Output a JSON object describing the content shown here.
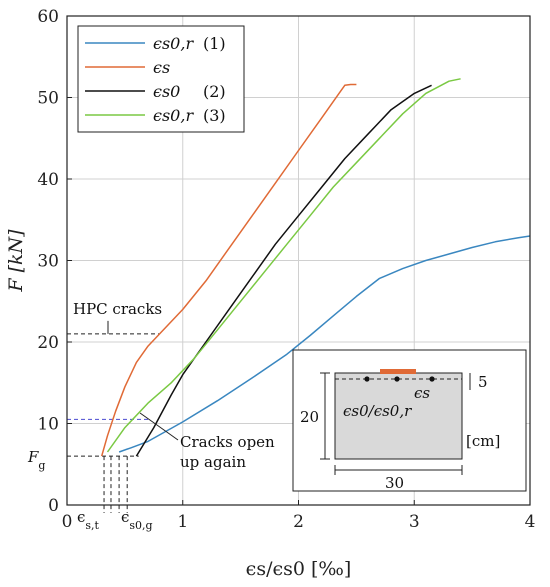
{
  "chart_data": {
    "type": "line",
    "xlabel": "ϵs/ϵs0 [‰]",
    "ylabel": "F [kN]",
    "xlim": [
      0,
      4
    ],
    "ylim": [
      0,
      60
    ],
    "xticks": [
      0,
      1,
      2,
      3,
      4
    ],
    "yticks": [
      0,
      10,
      20,
      30,
      40,
      50,
      60
    ],
    "grid": true,
    "legend_position": "top-left",
    "series": [
      {
        "name": "ϵs0,r",
        "legend_note": "(1)",
        "color": "#3a87c0",
        "x": [
          0.45,
          0.55,
          0.7,
          1.0,
          1.3,
          1.6,
          1.9,
          2.1,
          2.3,
          2.5,
          2.7,
          2.9,
          3.1,
          3.3,
          3.5,
          3.7,
          3.9,
          4.0
        ],
        "y": [
          6.5,
          7.0,
          7.8,
          10.2,
          12.8,
          15.6,
          18.5,
          20.8,
          23.2,
          25.6,
          27.8,
          29.0,
          30.0,
          30.8,
          31.6,
          32.3,
          32.8,
          33.0
        ]
      },
      {
        "name": "ϵs",
        "legend_note": "",
        "color": "#e06a36",
        "x": [
          0.3,
          0.35,
          0.42,
          0.5,
          0.6,
          0.7,
          0.8,
          1.0,
          1.2,
          1.4,
          1.6,
          1.8,
          2.0,
          2.2,
          2.35,
          2.4,
          2.45,
          2.5
        ],
        "y": [
          6.0,
          8.5,
          11.5,
          14.5,
          17.5,
          19.5,
          21.0,
          24.0,
          27.5,
          31.5,
          35.5,
          39.5,
          43.5,
          47.5,
          50.5,
          51.5,
          51.6,
          51.6
        ]
      },
      {
        "name": "ϵs0",
        "legend_note": "(2)",
        "color": "#111111",
        "x": [
          0.6,
          0.75,
          0.9,
          1.0,
          1.2,
          1.4,
          1.6,
          1.8,
          2.0,
          2.2,
          2.4,
          2.6,
          2.8,
          3.0,
          3.15
        ],
        "y": [
          6.0,
          9.5,
          13.5,
          16.0,
          20.0,
          24.0,
          28.0,
          32.0,
          35.5,
          39.0,
          42.5,
          45.5,
          48.5,
          50.5,
          51.5
        ]
      },
      {
        "name": "ϵs0,r",
        "legend_note": "(3)",
        "color": "#7ac943",
        "x": [
          0.35,
          0.5,
          0.7,
          0.9,
          1.1,
          1.3,
          1.5,
          1.7,
          1.9,
          2.1,
          2.3,
          2.5,
          2.7,
          2.9,
          3.1,
          3.3,
          3.4
        ],
        "y": [
          6.5,
          9.5,
          12.5,
          15.0,
          18.0,
          21.5,
          25.0,
          28.5,
          32.0,
          35.5,
          39.0,
          42.0,
          45.0,
          48.0,
          50.5,
          52.0,
          52.3
        ]
      }
    ],
    "annotations": {
      "hpc_cracks": {
        "text": "HPC cracks",
        "y": 21
      },
      "cracks_open_line1": "Cracks open",
      "cracks_open_line2": "up again",
      "fg_label": "F",
      "fg_sub": "g",
      "fg_y": 6,
      "blue_dash_y": 10.5,
      "eps_st_label": "ϵ",
      "eps_st_sub": "s,t",
      "eps_s0g_label": "ϵ",
      "eps_s0g_sub": "s0,g"
    },
    "inset": {
      "dim_height": "20",
      "dim_width": "30",
      "dim_depth": "5",
      "unit": "[cm]",
      "label_left": "ϵs0/ϵs0,r",
      "label_right": "ϵs"
    }
  }
}
